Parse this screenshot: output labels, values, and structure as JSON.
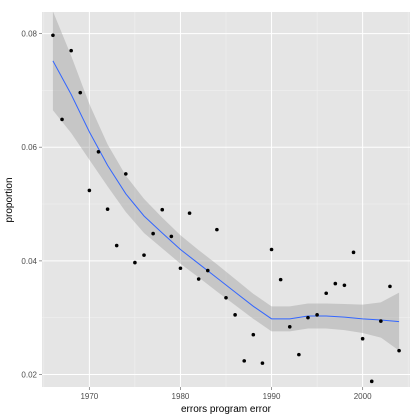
{
  "chart_data": {
    "type": "scatter",
    "xlabel": "errors program error",
    "ylabel": "proportion",
    "xlim": [
      1964.8,
      2005.2
    ],
    "ylim": [
      0.0178,
      0.0838
    ],
    "x_ticks": [
      1970,
      1980,
      1990,
      2000
    ],
    "y_ticks": [
      0.02,
      0.04,
      0.06,
      0.08
    ],
    "y_tick_labels": [
      "0.02",
      "0.04",
      "0.06",
      "0.08"
    ],
    "grid": true,
    "colors": {
      "panel": "#e5e5e5",
      "grid_major": "#ffffff",
      "grid_minor": "#f2f2f2",
      "points": "#000000",
      "smooth_line": "#3366ff",
      "ribbon": "#999999"
    },
    "points": {
      "x": [
        1966,
        1967,
        1968,
        1969,
        1970,
        1971,
        1972,
        1973,
        1974,
        1975,
        1976,
        1977,
        1978,
        1979,
        1980,
        1981,
        1982,
        1983,
        1984,
        1985,
        1986,
        1987,
        1988,
        1989,
        1990,
        1991,
        1992,
        1993,
        1994,
        1995,
        1996,
        1997,
        1998,
        1999,
        2000,
        2001,
        2002,
        2003,
        2004
      ],
      "y": [
        0.0797,
        0.0649,
        0.077,
        0.0696,
        0.0524,
        0.0592,
        0.0491,
        0.0427,
        0.0553,
        0.0397,
        0.041,
        0.0448,
        0.049,
        0.0443,
        0.0387,
        0.0484,
        0.0368,
        0.0383,
        0.0455,
        0.0335,
        0.0305,
        0.0224,
        0.027,
        0.022,
        0.042,
        0.0367,
        0.0284,
        0.0235,
        0.03,
        0.0305,
        0.0343,
        0.036,
        0.0357,
        0.0415,
        0.0263,
        0.0188,
        0.0294,
        0.0355,
        0.0242
      ]
    },
    "smooth": {
      "x": [
        1966,
        1968,
        1970,
        1972,
        1974,
        1976,
        1978,
        1980,
        1982,
        1984,
        1986,
        1988,
        1990,
        1992,
        1994,
        1996,
        1998,
        2000,
        2002,
        2004
      ],
      "y": [
        0.0752,
        0.0693,
        0.0627,
        0.0568,
        0.0518,
        0.0479,
        0.0449,
        0.042,
        0.0395,
        0.037,
        0.0345,
        0.032,
        0.0298,
        0.0298,
        0.0303,
        0.0303,
        0.0301,
        0.0298,
        0.0296,
        0.0293
      ],
      "lower": [
        0.0665,
        0.0625,
        0.0578,
        0.0531,
        0.0486,
        0.0449,
        0.0422,
        0.0395,
        0.0371,
        0.0346,
        0.0322,
        0.0298,
        0.0276,
        0.0276,
        0.0281,
        0.0281,
        0.0278,
        0.0273,
        0.0265,
        0.0242
      ],
      "upper": [
        0.0839,
        0.0761,
        0.0676,
        0.0605,
        0.055,
        0.0509,
        0.0476,
        0.0445,
        0.0419,
        0.0394,
        0.0368,
        0.0342,
        0.032,
        0.032,
        0.0325,
        0.0325,
        0.0324,
        0.0323,
        0.0327,
        0.0344
      ]
    }
  }
}
